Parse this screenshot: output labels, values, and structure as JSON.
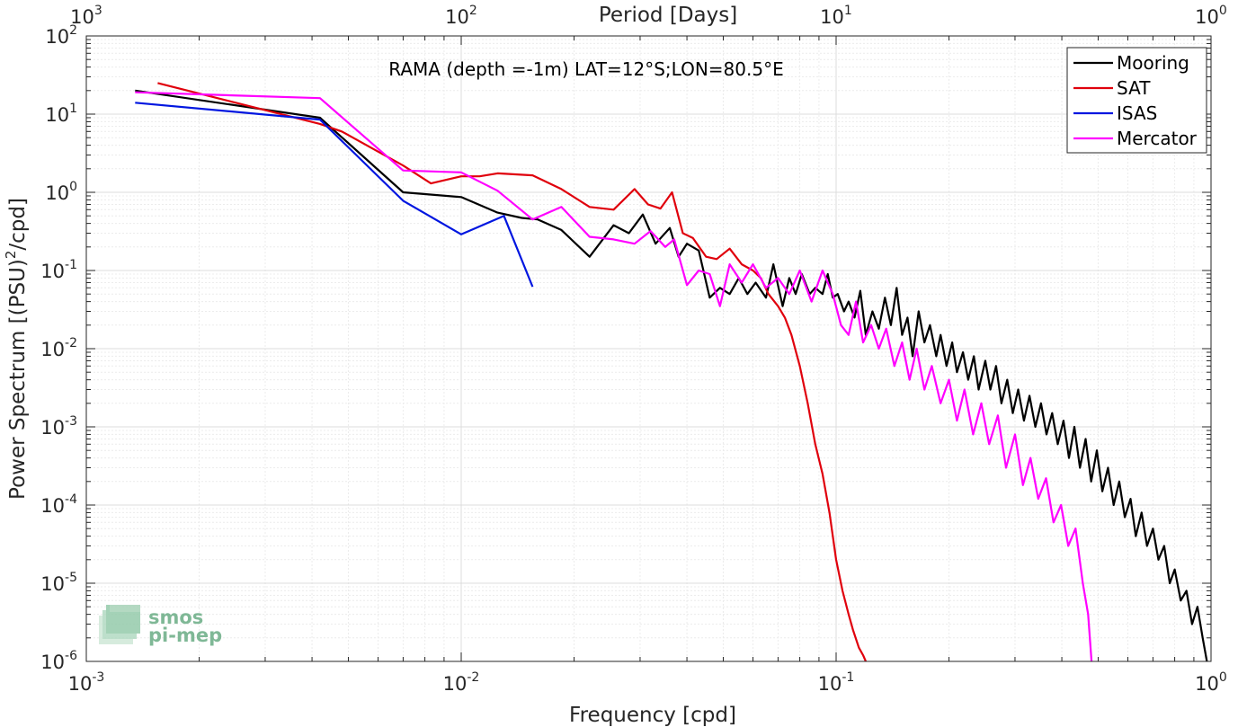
{
  "chart_data": {
    "type": "line",
    "title": "RAMA (depth =-1m) LAT=12°S;LON=80.5°E",
    "xlabel": "Frequency [cpd]",
    "ylabel_pre": "Power Spectrum [(PSU)",
    "ylabel_sup": "2",
    "ylabel_post": "/cpd]",
    "top_xlabel": "Period [Days]",
    "xscale": "log",
    "yscale": "log",
    "xlim": [
      0.001,
      1
    ],
    "ylim": [
      1e-06,
      100
    ],
    "grid": true,
    "legend_position": "top-right",
    "x_ticks": [
      {
        "value": 0.001,
        "base": "10",
        "exp": "-3"
      },
      {
        "value": 0.01,
        "base": "10",
        "exp": "-2"
      },
      {
        "value": 0.1,
        "base": "10",
        "exp": "-1"
      },
      {
        "value": 1,
        "base": "10",
        "exp": "0"
      }
    ],
    "top_ticks": [
      {
        "value": 0.001,
        "base": "10",
        "exp": "3"
      },
      {
        "value": 0.01,
        "base": "10",
        "exp": "2"
      },
      {
        "value": 0.1,
        "base": "10",
        "exp": "1"
      },
      {
        "value": 1,
        "base": "10",
        "exp": "0"
      }
    ],
    "y_ticks": [
      {
        "value": 100,
        "base": "10",
        "exp": "2"
      },
      {
        "value": 10,
        "base": "10",
        "exp": "1"
      },
      {
        "value": 1,
        "base": "10",
        "exp": "0"
      },
      {
        "value": 0.1,
        "base": "10",
        "exp": "-1"
      },
      {
        "value": 0.01,
        "base": "10",
        "exp": "-2"
      },
      {
        "value": 0.001,
        "base": "10",
        "exp": "-3"
      },
      {
        "value": 0.0001,
        "base": "10",
        "exp": "-4"
      },
      {
        "value": 1e-05,
        "base": "10",
        "exp": "-5"
      },
      {
        "value": 1e-06,
        "base": "10",
        "exp": "-6"
      }
    ],
    "series": [
      {
        "name": "Mooring",
        "color": "#000000",
        "x": [
          0.00135,
          0.0042,
          0.007,
          0.01,
          0.0125,
          0.0145,
          0.016,
          0.0185,
          0.022,
          0.0255,
          0.028,
          0.0305,
          0.033,
          0.036,
          0.038,
          0.04,
          0.043,
          0.046,
          0.049,
          0.052,
          0.055,
          0.058,
          0.061,
          0.065,
          0.068,
          0.072,
          0.075,
          0.078,
          0.081,
          0.085,
          0.088,
          0.092,
          0.095,
          0.098,
          0.101,
          0.105,
          0.108,
          0.112,
          0.116,
          0.12,
          0.125,
          0.13,
          0.135,
          0.14,
          0.145,
          0.15,
          0.155,
          0.16,
          0.166,
          0.172,
          0.178,
          0.185,
          0.19,
          0.197,
          0.204,
          0.21,
          0.218,
          0.225,
          0.233,
          0.24,
          0.25,
          0.258,
          0.267,
          0.276,
          0.286,
          0.296,
          0.306,
          0.317,
          0.328,
          0.34,
          0.352,
          0.364,
          0.377,
          0.39,
          0.404,
          0.418,
          0.432,
          0.447,
          0.463,
          0.479,
          0.496,
          0.513,
          0.531,
          0.55,
          0.569,
          0.589,
          0.61,
          0.63,
          0.653,
          0.675,
          0.7,
          0.724,
          0.75,
          0.776,
          0.8,
          0.83,
          0.86,
          0.89,
          0.92,
          0.95,
          0.975
        ],
        "values": [
          20,
          9,
          1.0,
          0.87,
          0.55,
          0.47,
          0.45,
          0.33,
          0.15,
          0.38,
          0.3,
          0.52,
          0.22,
          0.35,
          0.15,
          0.22,
          0.18,
          0.045,
          0.06,
          0.05,
          0.08,
          0.05,
          0.07,
          0.045,
          0.12,
          0.035,
          0.08,
          0.05,
          0.09,
          0.05,
          0.06,
          0.05,
          0.09,
          0.045,
          0.05,
          0.03,
          0.04,
          0.025,
          0.055,
          0.015,
          0.03,
          0.018,
          0.045,
          0.02,
          0.06,
          0.015,
          0.025,
          0.008,
          0.03,
          0.012,
          0.02,
          0.008,
          0.015,
          0.006,
          0.012,
          0.005,
          0.009,
          0.004,
          0.008,
          0.003,
          0.007,
          0.003,
          0.006,
          0.002,
          0.004,
          0.0015,
          0.003,
          0.0012,
          0.0025,
          0.001,
          0.002,
          0.0008,
          0.0015,
          0.0006,
          0.0012,
          0.0004,
          0.001,
          0.0003,
          0.0007,
          0.0002,
          0.0005,
          0.00015,
          0.0003,
          0.0001,
          0.0002,
          7e-05,
          0.00012,
          4e-05,
          8e-05,
          3e-05,
          5e-05,
          2e-05,
          3e-05,
          1e-05,
          1.5e-05,
          6e-06,
          8e-06,
          3e-06,
          5e-06,
          2e-06,
          1e-06
        ]
      },
      {
        "name": "SAT",
        "color": "#e0000c",
        "x": [
          0.00155,
          0.0042,
          0.0048,
          0.007,
          0.0083,
          0.01,
          0.0112,
          0.0125,
          0.0155,
          0.0185,
          0.022,
          0.0255,
          0.029,
          0.0315,
          0.034,
          0.0365,
          0.039,
          0.0415,
          0.045,
          0.048,
          0.052,
          0.056,
          0.06,
          0.063,
          0.066,
          0.07,
          0.073,
          0.076,
          0.08,
          0.084,
          0.088,
          0.092,
          0.096,
          0.1,
          0.104,
          0.108,
          0.111,
          0.115,
          0.118,
          0.12
        ],
        "values": [
          25,
          7.5,
          6,
          2.2,
          1.3,
          1.6,
          1.6,
          1.75,
          1.65,
          1.1,
          0.65,
          0.6,
          1.1,
          0.7,
          0.62,
          1.0,
          0.3,
          0.26,
          0.15,
          0.14,
          0.19,
          0.12,
          0.1,
          0.08,
          0.05,
          0.035,
          0.025,
          0.015,
          0.006,
          0.002,
          0.0006,
          0.00025,
          8e-05,
          2e-05,
          8e-06,
          4e-06,
          2.5e-06,
          1.5e-06,
          1.2e-06,
          1e-06
        ]
      },
      {
        "name": "ISAS",
        "color": "#0016e0",
        "x": [
          0.00135,
          0.0042,
          0.007,
          0.01,
          0.013,
          0.0155
        ],
        "values": [
          14,
          8.5,
          0.78,
          0.29,
          0.5,
          0.062
        ]
      },
      {
        "name": "Mercator",
        "color": "#ff00ff",
        "x": [
          0.00135,
          0.0042,
          0.007,
          0.01,
          0.0125,
          0.0155,
          0.0185,
          0.022,
          0.0255,
          0.029,
          0.032,
          0.035,
          0.037,
          0.04,
          0.043,
          0.046,
          0.049,
          0.052,
          0.056,
          0.06,
          0.065,
          0.07,
          0.075,
          0.08,
          0.086,
          0.092,
          0.098,
          0.103,
          0.108,
          0.113,
          0.118,
          0.124,
          0.13,
          0.136,
          0.143,
          0.15,
          0.157,
          0.164,
          0.172,
          0.18,
          0.19,
          0.2,
          0.21,
          0.22,
          0.232,
          0.244,
          0.256,
          0.27,
          0.284,
          0.3,
          0.315,
          0.33,
          0.346,
          0.363,
          0.38,
          0.398,
          0.416,
          0.435,
          0.455,
          0.47,
          0.48
        ],
        "values": [
          19,
          16,
          1.9,
          1.8,
          1.05,
          0.45,
          0.65,
          0.27,
          0.25,
          0.22,
          0.32,
          0.2,
          0.25,
          0.065,
          0.1,
          0.09,
          0.035,
          0.12,
          0.07,
          0.12,
          0.06,
          0.08,
          0.05,
          0.1,
          0.04,
          0.1,
          0.05,
          0.02,
          0.015,
          0.04,
          0.012,
          0.02,
          0.01,
          0.018,
          0.006,
          0.012,
          0.004,
          0.01,
          0.003,
          0.006,
          0.002,
          0.004,
          0.0012,
          0.003,
          0.0008,
          0.002,
          0.0006,
          0.0014,
          0.0003,
          0.0008,
          0.00018,
          0.0004,
          0.00012,
          0.00022,
          6e-05,
          0.0001,
          3e-05,
          5e-05,
          1e-05,
          4e-06,
          1e-06
        ]
      }
    ]
  },
  "logo": {
    "line1": "smos",
    "line2": "pi-mep",
    "color": "#7fb896"
  }
}
